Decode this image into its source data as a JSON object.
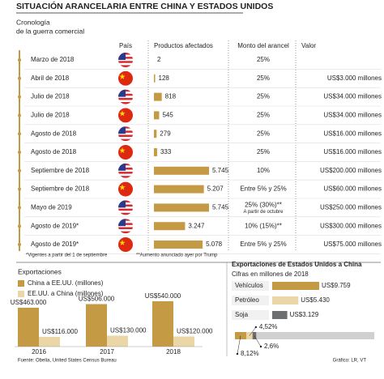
{
  "title": "SITUACIÓN ARANCELARIA ENTRE CHINA Y ESTADOS UNIDOS",
  "subtitle": [
    "Cronología",
    "de la guerra comercial"
  ],
  "table": {
    "columns": [
      "País",
      "Productos afectados",
      "Monto del arancel",
      "Valor"
    ],
    "rows": [
      {
        "date": "Marzo de 2018",
        "flag": "us",
        "tariff": "25%",
        "value": null
      },
      {
        "date": "Abril de 2018",
        "flag": "cn",
        "tariff": "25%",
        "value": "US$3.000 millones"
      },
      {
        "date": "Julio de 2018",
        "flag": "us",
        "tariff": "25%",
        "value": "US$34.000 millones"
      },
      {
        "date": "Julio de 2018",
        "flag": "cn",
        "tariff": "25%",
        "value": "US$34.000 millones"
      },
      {
        "date": "Agosto de 2018",
        "flag": "us",
        "tariff": "25%",
        "value": "US$16.000 millones"
      },
      {
        "date": "Agosto de 2018",
        "flag": "cn",
        "tariff": "25%",
        "value": "US$16.000 millones"
      },
      {
        "date": "Septiembre de 2018",
        "flag": "us",
        "tariff": "10%",
        "value": "US$200.000 millones"
      },
      {
        "date": "Septiembre de 2018",
        "flag": "cn",
        "tariff": "Entre 5% y 25%",
        "value": "US$60.000 millones"
      },
      {
        "date": "Mayo de 2019",
        "flag": "us",
        "tariff": "25% (30%)**",
        "tariff_note": "A partir de octubre",
        "value": "US$250.000 millones"
      },
      {
        "date": "Agosto de 2019*",
        "flag": "us",
        "tariff": "10% (15%)**",
        "value": "US$300.000 millones"
      },
      {
        "date": "Agosto de 2019*",
        "flag": "cn",
        "tariff": "Entre 5% y 25%",
        "value": "US$75.000 millones"
      }
    ],
    "products": {
      "color": "#c49a45",
      "values": [
        2,
        128,
        818,
        545,
        279,
        333,
        5745,
        5207,
        5745,
        3247,
        5078
      ],
      "value_labels": [
        "2",
        "128",
        "818",
        "545",
        "279",
        "333",
        "5.745",
        "5.207",
        "5.745",
        "3.247",
        "5.078"
      ]
    }
  },
  "footnotes": [
    "*Vigentes a partir del 1 de septiembre",
    "**Aumento anunciado ayer por Trump"
  ],
  "chart_data": [
    {
      "type": "bar",
      "title": "Exportaciones",
      "categories": [
        "2016",
        "2017",
        "2018"
      ],
      "series": [
        {
          "name": "China a EE.UU. (millones)",
          "color": "#c49a45",
          "values": [
            463000,
            506000,
            540000
          ],
          "value_labels": [
            "US$463.000",
            "US$506.000",
            "US$540.000"
          ]
        },
        {
          "name": "EE.UU. a China (millones)",
          "color": "#ead6a6",
          "values": [
            116000,
            130000,
            120000
          ],
          "value_labels": [
            "US$116.000",
            "US$130.000",
            "US$120.000"
          ]
        }
      ]
    },
    {
      "type": "barh",
      "title": "Exportaciones de Estados Unidos a China",
      "subtitle": "Cifras en millones de 2018",
      "categories": [
        "Vehículos",
        "Petróleo",
        "Soja"
      ],
      "values": [
        9759,
        5430,
        3129
      ],
      "value_labels": [
        "US$9.759",
        "US$5.430",
        "US$3.129"
      ],
      "colors": [
        "#c49a45",
        "#ead6a6",
        "#6d6e70"
      ]
    },
    {
      "type": "share",
      "values": [
        8.12,
        4.52,
        2.6
      ],
      "value_labels": [
        "8,12%",
        "4,52%",
        "2,6%"
      ],
      "colors": [
        "#c49a45",
        "#ead6a6",
        "#6d6e70"
      ],
      "xlim": [
        0,
        100
      ]
    }
  ],
  "source": "Fuente: Obelia, United States Census Bureau",
  "credit": "Gráfico: LR, VT"
}
